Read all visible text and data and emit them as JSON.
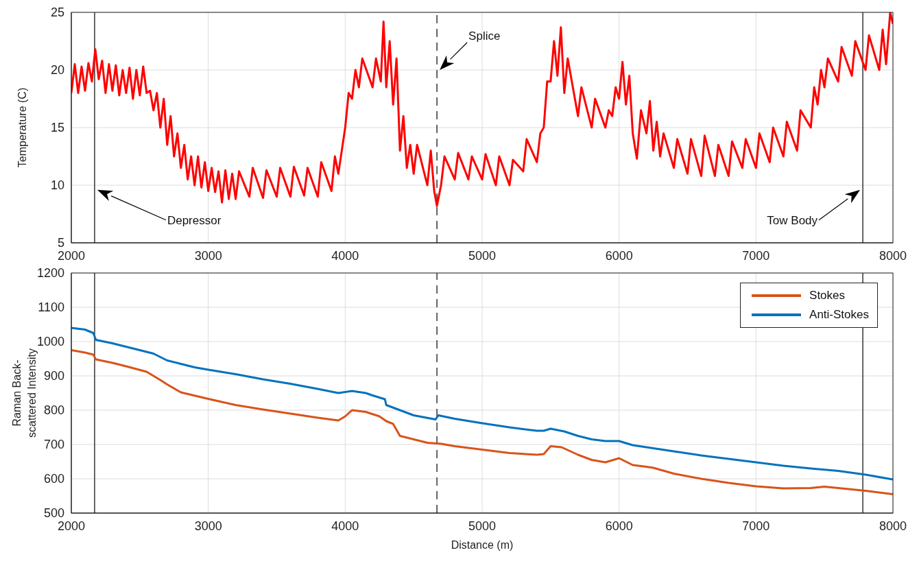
{
  "chart_data": [
    {
      "type": "line",
      "ylabel": "Temperature (C)",
      "xlim": [
        2000,
        8000
      ],
      "xticks": [
        2000,
        3000,
        4000,
        5000,
        6000,
        7000,
        8000
      ],
      "ylim": [
        5,
        25
      ],
      "yticks": [
        5,
        10,
        15,
        20,
        25
      ],
      "grid": true,
      "series": [
        {
          "color": "#ff0000",
          "x": [
            2000,
            2025,
            2050,
            2075,
            2100,
            2125,
            2150,
            2175,
            2200,
            2225,
            2250,
            2275,
            2300,
            2325,
            2350,
            2375,
            2400,
            2425,
            2450,
            2475,
            2500,
            2525,
            2550,
            2575,
            2600,
            2625,
            2650,
            2675,
            2700,
            2725,
            2750,
            2775,
            2800,
            2825,
            2850,
            2875,
            2900,
            2925,
            2950,
            2975,
            3000,
            3025,
            3050,
            3075,
            3100,
            3125,
            3150,
            3175,
            3200,
            3225,
            3300,
            3325,
            3400,
            3425,
            3500,
            3525,
            3600,
            3625,
            3700,
            3725,
            3800,
            3825,
            3900,
            3925,
            3950,
            3975,
            4000,
            4025,
            4050,
            4075,
            4100,
            4125,
            4200,
            4225,
            4260,
            4280,
            4300,
            4325,
            4350,
            4375,
            4400,
            4425,
            4450,
            4475,
            4500,
            4525,
            4600,
            4625,
            4650,
            4670,
            4700,
            4725,
            4800,
            4825,
            4900,
            4925,
            5000,
            5025,
            5100,
            5125,
            5200,
            5225,
            5300,
            5325,
            5400,
            5425,
            5450,
            5475,
            5500,
            5525,
            5550,
            5575,
            5600,
            5625,
            5700,
            5725,
            5800,
            5825,
            5900,
            5925,
            5950,
            5975,
            6000,
            6025,
            6050,
            6075,
            6100,
            6130,
            6160,
            6200,
            6225,
            6250,
            6275,
            6300,
            6325,
            6400,
            6425,
            6500,
            6525,
            6600,
            6625,
            6700,
            6725,
            6800,
            6825,
            6900,
            6925,
            7000,
            7025,
            7100,
            7125,
            7200,
            7225,
            7300,
            7325,
            7400,
            7425,
            7450,
            7475,
            7500,
            7525,
            7600,
            7625,
            7700,
            7725,
            7800,
            7825,
            7900,
            7925,
            7950,
            7980,
            8000
          ],
          "values": [
            18,
            20.5,
            18,
            20.3,
            18.2,
            20.6,
            19,
            21.8,
            19.2,
            20.8,
            18,
            20.5,
            18.2,
            20.4,
            17.8,
            20,
            18,
            20.2,
            17.5,
            20,
            17.8,
            20.3,
            18,
            18.2,
            16.5,
            18,
            15,
            17.5,
            13.5,
            16,
            12.5,
            14.5,
            11.5,
            13.5,
            10.5,
            12.5,
            10,
            12.5,
            9.8,
            12,
            9.5,
            11.5,
            9.4,
            11.2,
            8.5,
            11.3,
            8.8,
            11,
            8.8,
            11.2,
            9,
            11.5,
            8.9,
            11.3,
            9,
            11.5,
            9,
            11.6,
            9.1,
            11.5,
            9,
            12,
            9.5,
            12.5,
            11,
            13,
            15,
            18,
            17.5,
            20,
            18.5,
            21,
            18.5,
            21,
            19,
            24.2,
            18.5,
            22.5,
            17,
            21,
            13,
            16,
            11.5,
            13.5,
            11,
            13.5,
            10,
            13,
            9.5,
            8.2,
            10,
            12.5,
            10.5,
            12.8,
            10.5,
            12.5,
            10.5,
            12.7,
            10,
            12.5,
            10,
            12.2,
            11.2,
            14,
            12,
            14.5,
            15,
            19,
            19,
            22.5,
            19.5,
            23.7,
            18,
            21,
            16,
            18.5,
            15,
            17.5,
            15,
            16.5,
            16,
            18.5,
            17.5,
            20.7,
            17,
            19.5,
            14.5,
            12.3,
            16.5,
            14.5,
            17.3,
            13,
            15.5,
            12.5,
            14.5,
            11.5,
            14,
            11,
            14,
            10.8,
            14.3,
            10.8,
            13.5,
            10.8,
            13.8,
            11.5,
            14,
            11.5,
            14.5,
            12,
            15,
            12.5,
            15.5,
            13,
            16.5,
            15,
            18.5,
            17,
            20,
            18.5,
            21,
            19,
            22,
            19.5,
            22.5,
            20,
            23,
            20,
            23.5,
            20.5,
            25,
            24
          ]
        }
      ],
      "ref_lines": [
        {
          "axis": "x",
          "value": 2170,
          "line_style": "solid",
          "color": "#333333"
        },
        {
          "axis": "x",
          "value": 4670,
          "line_style": "dashed",
          "color": "#333333"
        },
        {
          "axis": "x",
          "value": 7780,
          "line_style": "solid",
          "color": "#333333"
        }
      ],
      "annotations": [
        "Depressor",
        "Splice",
        "Tow Body"
      ]
    },
    {
      "type": "line",
      "xlabel": "Distance (m)",
      "ylabel": "Raman Back-scattered Intensity",
      "xlim": [
        2000,
        8000
      ],
      "xticks": [
        2000,
        3000,
        4000,
        5000,
        6000,
        7000,
        8000
      ],
      "ylim": [
        500,
        1200
      ],
      "yticks": [
        500,
        600,
        700,
        800,
        900,
        1000,
        1100,
        1200
      ],
      "grid": true,
      "legend": "top right",
      "series": [
        {
          "name": "Stokes",
          "color": "#d95319",
          "x": [
            2000,
            2100,
            2160,
            2180,
            2300,
            2400,
            2550,
            2650,
            2700,
            2800,
            3000,
            3200,
            3400,
            3600,
            3800,
            3950,
            4000,
            4050,
            4150,
            4250,
            4300,
            4350,
            4400,
            4500,
            4600,
            4700,
            4800,
            5000,
            5200,
            5400,
            5450,
            5500,
            5580,
            5700,
            5800,
            5900,
            6000,
            6100,
            6200,
            6250,
            6400,
            6600,
            6800,
            7000,
            7200,
            7400,
            7500,
            7600,
            7800,
            8000
          ],
          "values": [
            975,
            968,
            962,
            948,
            938,
            928,
            912,
            888,
            875,
            852,
            833,
            815,
            802,
            790,
            778,
            770,
            782,
            800,
            795,
            782,
            768,
            760,
            725,
            715,
            705,
            702,
            695,
            685,
            675,
            670,
            672,
            695,
            692,
            670,
            655,
            648,
            660,
            640,
            635,
            632,
            615,
            600,
            588,
            578,
            572,
            573,
            577,
            573,
            565,
            555
          ]
        },
        {
          "name": "Anti-Stokes",
          "color": "#0072bd",
          "x": [
            2000,
            2100,
            2160,
            2180,
            2300,
            2400,
            2500,
            2600,
            2700,
            2800,
            2900,
            3000,
            3200,
            3400,
            3600,
            3800,
            3950,
            4050,
            4150,
            4200,
            4290,
            4300,
            4400,
            4500,
            4660,
            4680,
            4800,
            5000,
            5200,
            5400,
            5450,
            5500,
            5600,
            5700,
            5800,
            5900,
            6000,
            6100,
            6200,
            6400,
            6600,
            6800,
            7000,
            7200,
            7400,
            7600,
            7800,
            8000
          ],
          "values": [
            1040,
            1035,
            1025,
            1005,
            995,
            985,
            975,
            965,
            945,
            935,
            925,
            918,
            905,
            890,
            877,
            862,
            850,
            856,
            850,
            843,
            832,
            815,
            800,
            785,
            773,
            785,
            775,
            762,
            750,
            740,
            740,
            746,
            738,
            725,
            715,
            710,
            710,
            698,
            692,
            680,
            668,
            658,
            648,
            638,
            630,
            623,
            612,
            598
          ]
        }
      ],
      "ref_lines": [
        {
          "axis": "x",
          "value": 2170,
          "line_style": "solid",
          "color": "#333333"
        },
        {
          "axis": "x",
          "value": 4670,
          "line_style": "dashed",
          "color": "#333333"
        },
        {
          "axis": "x",
          "value": 7780,
          "line_style": "solid",
          "color": "#333333"
        }
      ]
    }
  ]
}
